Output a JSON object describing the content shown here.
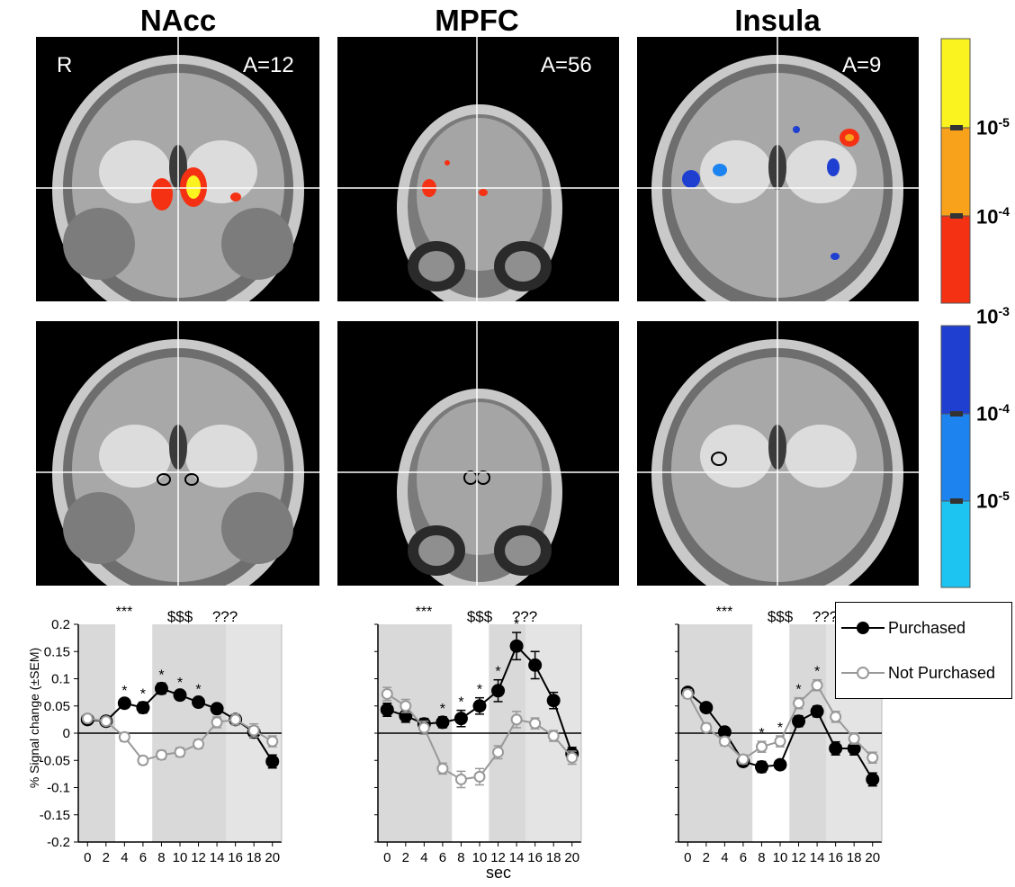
{
  "columns": [
    {
      "title": "NAcc"
    },
    {
      "title": "MPFC"
    },
    {
      "title": "Insula"
    }
  ],
  "brain_labels": {
    "side": "R",
    "nacc_slice": "A=12",
    "mpfc_slice": "A=56",
    "insula_slice": "A=9"
  },
  "colorbar": {
    "warm": {
      "colors": [
        "#fbf31f",
        "#f7a21a",
        "#f53114"
      ],
      "labels": [
        "10",
        "10",
        "10"
      ],
      "exponents": [
        "-5",
        "-4",
        "-3"
      ]
    },
    "cool": {
      "colors": [
        "#1f3fd0",
        "#1c83ef",
        "#1ec4f1"
      ],
      "labels": [
        "10",
        "10"
      ],
      "exponents": [
        "-4",
        "-5"
      ]
    }
  },
  "legend": {
    "purchased": "Purchased",
    "not_purchased": "Not Purchased"
  },
  "axis": {
    "xlabel": "sec",
    "ylabel": "% Signal change (±SEM)"
  },
  "significance": {
    "a": "***",
    "b": "$$$",
    "c": "???"
  },
  "chart_data": [
    {
      "type": "line",
      "panel": "NAcc",
      "x": [
        0,
        2,
        4,
        6,
        8,
        10,
        12,
        14,
        16,
        18,
        20
      ],
      "ylim": [
        -0.2,
        0.2
      ],
      "yticks": [
        0.2,
        0.15,
        0.1,
        0.05,
        0,
        -0.05,
        -0.1,
        -0.15,
        -0.2
      ],
      "ylabel": "% Signal change (±SEM)",
      "shaded_ranges": [
        [
          -1,
          3
        ],
        [
          7,
          15
        ],
        [
          15,
          21
        ]
      ],
      "series": [
        {
          "name": "Purchased",
          "values": [
            0.025,
            0.022,
            0.055,
            0.047,
            0.082,
            0.07,
            0.057,
            0.045,
            0.025,
            0.002,
            -0.052
          ],
          "err": [
            0.006,
            0.006,
            0.008,
            0.01,
            0.01,
            0.008,
            0.008,
            0.008,
            0.008,
            0.01,
            0.012
          ]
        },
        {
          "name": "Not Purchased",
          "values": [
            0.027,
            0.022,
            -0.007,
            -0.05,
            -0.04,
            -0.035,
            -0.02,
            0.02,
            0.025,
            0.005,
            -0.015
          ],
          "err": [
            0.006,
            0.006,
            0.008,
            0.007,
            0.008,
            0.008,
            0.008,
            0.01,
            0.01,
            0.012,
            0.01
          ]
        }
      ],
      "asterisks_x": [
        4,
        6,
        8,
        10,
        12
      ]
    },
    {
      "type": "line",
      "panel": "MPFC",
      "x": [
        0,
        2,
        4,
        6,
        8,
        10,
        12,
        14,
        16,
        18,
        20
      ],
      "ylim": [
        -0.2,
        0.2
      ],
      "shaded_ranges": [
        [
          -1,
          7
        ],
        [
          11,
          15
        ],
        [
          15,
          21
        ]
      ],
      "series": [
        {
          "name": "Purchased",
          "values": [
            0.043,
            0.032,
            0.017,
            0.02,
            0.027,
            0.05,
            0.078,
            0.16,
            0.125,
            0.06,
            -0.038
          ],
          "err": [
            0.012,
            0.012,
            0.01,
            0.01,
            0.015,
            0.015,
            0.02,
            0.025,
            0.025,
            0.015,
            0.012
          ]
        },
        {
          "name": "Not Purchased",
          "values": [
            0.072,
            0.05,
            0.01,
            -0.065,
            -0.085,
            -0.08,
            -0.035,
            0.025,
            0.018,
            -0.005,
            -0.045
          ],
          "err": [
            0.012,
            0.012,
            0.012,
            0.01,
            0.015,
            0.015,
            0.012,
            0.015,
            0.01,
            0.01,
            0.012
          ]
        }
      ],
      "asterisks_x": [
        6,
        8,
        10,
        12,
        14
      ]
    },
    {
      "type": "line",
      "panel": "Insula",
      "x": [
        0,
        2,
        4,
        6,
        8,
        10,
        12,
        14,
        16,
        18,
        20
      ],
      "ylim": [
        -0.2,
        0.2
      ],
      "shaded_ranges": [
        [
          -1,
          7
        ],
        [
          11,
          15
        ],
        [
          15,
          21
        ]
      ],
      "series": [
        {
          "name": "Purchased",
          "values": [
            0.075,
            0.047,
            0.002,
            -0.052,
            -0.062,
            -0.058,
            0.022,
            0.04,
            -0.028,
            -0.028,
            -0.085
          ],
          "err": [
            0.008,
            0.008,
            0.008,
            0.008,
            0.01,
            0.008,
            0.01,
            0.01,
            0.012,
            0.012,
            0.012
          ]
        },
        {
          "name": "Not Purchased",
          "values": [
            0.072,
            0.01,
            -0.015,
            -0.048,
            -0.025,
            -0.015,
            0.055,
            0.088,
            0.03,
            -0.01,
            -0.045
          ],
          "err": [
            0.008,
            0.008,
            0.008,
            0.008,
            0.01,
            0.01,
            0.01,
            0.01,
            0.01,
            0.01,
            0.01
          ]
        }
      ],
      "asterisks_x": [
        8,
        10,
        12,
        14
      ]
    }
  ]
}
